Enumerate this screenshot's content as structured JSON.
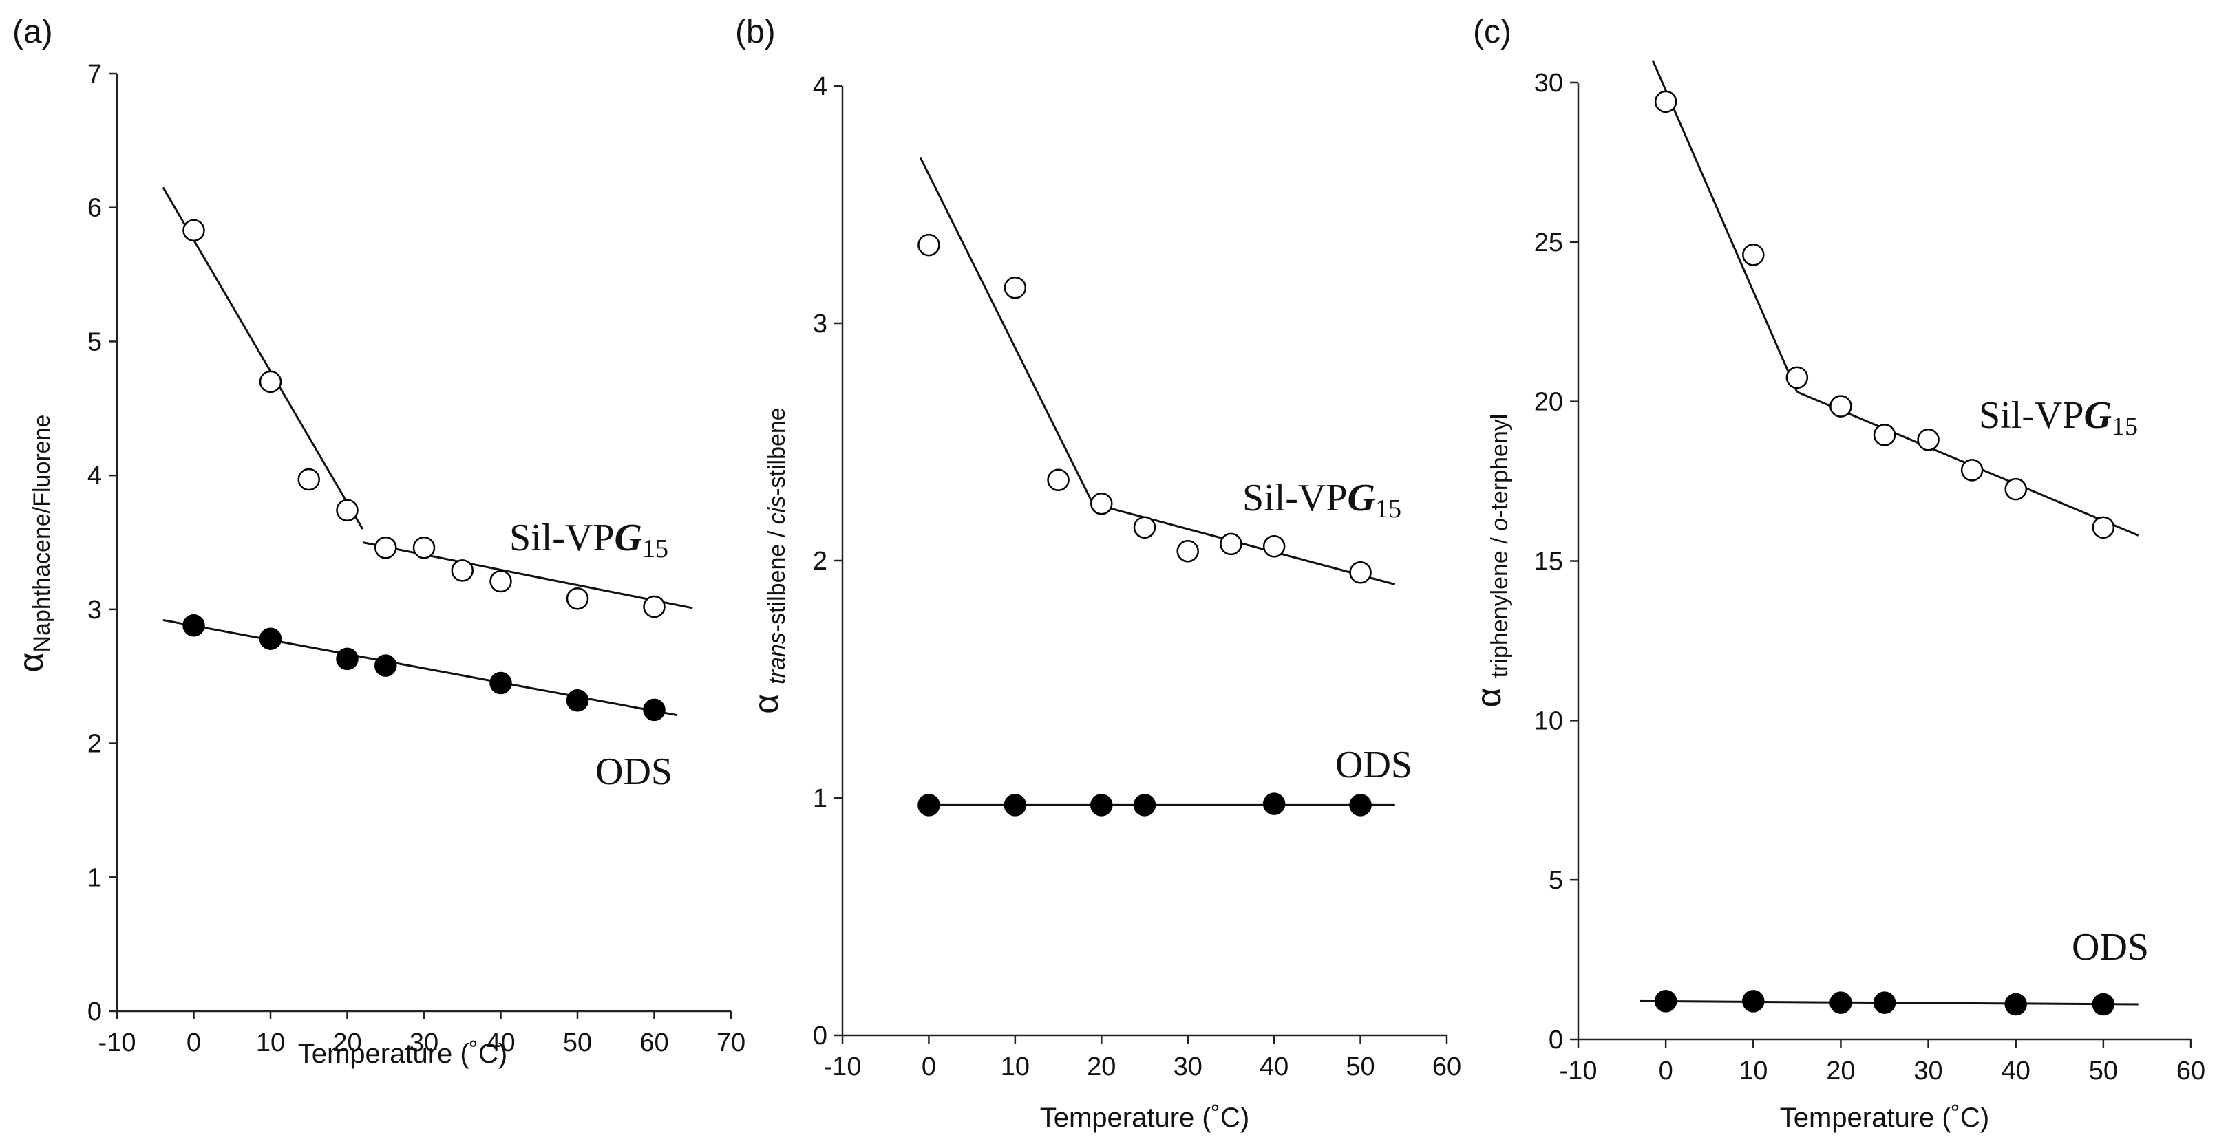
{
  "figure": {
    "panels": [
      "(a)",
      "(b)",
      "(c)"
    ]
  },
  "chart_data": [
    {
      "type": "scatter",
      "panel_label": "(a)",
      "xlabel": "Temperature (˚C)",
      "ylabel_prefix": "α",
      "ylabel_subscript": "Naphthacene/Fluorene",
      "xlim": [
        -10,
        70
      ],
      "ylim": [
        0,
        7
      ],
      "xticks": [
        -10,
        0,
        10,
        20,
        30,
        40,
        50,
        60,
        70
      ],
      "yticks": [
        0,
        1,
        2,
        3,
        4,
        5,
        6,
        7
      ],
      "series": [
        {
          "name": "Sil-VPG15",
          "label_main": "Sil-VP",
          "label_bold": "G",
          "label_sub": "15",
          "marker": "open-circle",
          "x": [
            0,
            10,
            15,
            20,
            25,
            30,
            35,
            40,
            50,
            60
          ],
          "y": [
            5.83,
            4.7,
            3.97,
            3.74,
            3.46,
            3.46,
            3.29,
            3.21,
            3.08,
            3.02
          ],
          "fit_lines": [
            {
              "x": [
                -4,
                22
              ],
              "y": [
                6.15,
                3.6
              ]
            },
            {
              "x": [
                22,
                65
              ],
              "y": [
                3.5,
                3.01
              ]
            }
          ]
        },
        {
          "name": "ODS",
          "label_main": "ODS",
          "marker": "filled-circle",
          "x": [
            0,
            10,
            20,
            25,
            40,
            50,
            60
          ],
          "y": [
            2.88,
            2.78,
            2.63,
            2.58,
            2.45,
            2.32,
            2.25
          ],
          "fit_lines": [
            {
              "x": [
                -4,
                63
              ],
              "y": [
                2.92,
                2.21
              ]
            }
          ]
        }
      ]
    },
    {
      "type": "scatter",
      "panel_label": "(b)",
      "xlabel": "Temperature (˚C)",
      "ylabel_prefix": "α",
      "ylabel_parts": [
        {
          "text": "trans",
          "italic": true
        },
        {
          "text": "-stilbene / ",
          "italic": false
        },
        {
          "text": "cis",
          "italic": true
        },
        {
          "text": "-stilbene",
          "italic": false
        }
      ],
      "xlim": [
        -10,
        60
      ],
      "ylim": [
        0,
        4
      ],
      "xticks": [
        -10,
        0,
        10,
        20,
        30,
        40,
        50,
        60
      ],
      "yticks": [
        0,
        1,
        2,
        3,
        4
      ],
      "series": [
        {
          "name": "Sil-VPG15",
          "label_main": "Sil-VP",
          "label_bold": "G",
          "label_sub": "15",
          "marker": "open-circle",
          "x": [
            0,
            10,
            15,
            20,
            25,
            30,
            35,
            40,
            50
          ],
          "y": [
            3.33,
            3.15,
            2.34,
            2.24,
            2.14,
            2.04,
            2.07,
            2.06,
            1.95
          ],
          "fit_lines": [
            {
              "x": [
                -1,
                19
              ],
              "y": [
                3.7,
                2.24
              ]
            },
            {
              "x": [
                19,
                54
              ],
              "y": [
                2.24,
                1.9
              ]
            }
          ]
        },
        {
          "name": "ODS",
          "label_main": "ODS",
          "marker": "filled-circle",
          "x": [
            0,
            10,
            20,
            25,
            40,
            50
          ],
          "y": [
            0.97,
            0.97,
            0.97,
            0.97,
            0.975,
            0.97
          ],
          "fit_lines": [
            {
              "x": [
                -1,
                54
              ],
              "y": [
                0.97,
                0.97
              ]
            }
          ]
        }
      ]
    },
    {
      "type": "scatter",
      "panel_label": "(c)",
      "xlabel": "Temperature (˚C)",
      "ylabel_prefix": "α",
      "ylabel_parts": [
        {
          "text": "triphenylene / ",
          "italic": false
        },
        {
          "text": "o",
          "italic": true
        },
        {
          "text": "-terphenyl",
          "italic": false
        }
      ],
      "xlim": [
        -10,
        60
      ],
      "ylim": [
        0,
        30
      ],
      "xticks": [
        -10,
        0,
        10,
        20,
        30,
        40,
        50,
        60
      ],
      "yticks": [
        0,
        5,
        10,
        15,
        20,
        25,
        30
      ],
      "series": [
        {
          "name": "Sil-VPG15",
          "label_main": "Sil-VP",
          "label_bold": "G",
          "label_sub": "15",
          "marker": "open-circle",
          "x": [
            0,
            10,
            15,
            20,
            25,
            30,
            35,
            40,
            50
          ],
          "y": [
            29.4,
            24.6,
            20.75,
            19.85,
            18.95,
            18.8,
            17.85,
            17.25,
            16.05
          ],
          "fit_lines": [
            {
              "x": [
                -1.5,
                15
              ],
              "y": [
                30.7,
                20.3
              ]
            },
            {
              "x": [
                15,
                54
              ],
              "y": [
                20.3,
                15.8
              ]
            }
          ]
        },
        {
          "name": "ODS",
          "label_main": "ODS",
          "marker": "filled-circle",
          "x": [
            0,
            10,
            20,
            25,
            40,
            50
          ],
          "y": [
            1.2,
            1.2,
            1.15,
            1.15,
            1.1,
            1.1
          ],
          "fit_lines": [
            {
              "x": [
                -3,
                54
              ],
              "y": [
                1.2,
                1.1
              ]
            }
          ]
        }
      ]
    }
  ]
}
